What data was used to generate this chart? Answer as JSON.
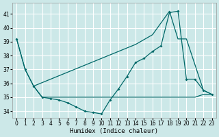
{
  "xlabel": "Humidex (Indice chaleur)",
  "background_color": "#cce8e8",
  "grid_color": "#ffffff",
  "line_color": "#006868",
  "xlim": [
    -0.5,
    23.5
  ],
  "ylim": [
    33.5,
    41.8
  ],
  "yticks": [
    34,
    35,
    36,
    37,
    38,
    39,
    40,
    41
  ],
  "xticks": [
    0,
    1,
    2,
    3,
    4,
    5,
    6,
    7,
    8,
    9,
    10,
    11,
    12,
    13,
    14,
    15,
    16,
    17,
    18,
    19,
    20,
    21,
    22,
    23
  ],
  "curve1_x": [
    0,
    1,
    2,
    3,
    4,
    5,
    6,
    7,
    8,
    9,
    10,
    11,
    12,
    13,
    14,
    15,
    16,
    17,
    18,
    19,
    20,
    21,
    22,
    23
  ],
  "curve1_y": [
    39.2,
    37.0,
    35.8,
    35.0,
    35.0,
    35.0,
    35.0,
    35.0,
    35.0,
    35.0,
    35.0,
    35.0,
    35.0,
    35.0,
    35.0,
    35.0,
    35.0,
    35.0,
    35.0,
    35.0,
    35.0,
    35.0,
    35.2,
    35.2
  ],
  "curve2_x": [
    2,
    4,
    6,
    8,
    10,
    12,
    14,
    16,
    18,
    19,
    20,
    22,
    23
  ],
  "curve2_y": [
    35.8,
    36.3,
    36.8,
    37.3,
    37.8,
    38.3,
    38.8,
    39.5,
    41.2,
    39.2,
    39.2,
    35.5,
    35.2
  ],
  "curve3_x": [
    0,
    1,
    2,
    3,
    4,
    5,
    6,
    7,
    8,
    9,
    10,
    11,
    12,
    13,
    14,
    15,
    16,
    17,
    18,
    19,
    20,
    21,
    22,
    23
  ],
  "curve3_y": [
    39.2,
    37.0,
    35.8,
    35.0,
    34.9,
    34.8,
    34.6,
    34.3,
    34.0,
    33.9,
    33.8,
    34.8,
    35.6,
    36.5,
    37.5,
    37.8,
    38.3,
    38.7,
    41.1,
    41.2,
    36.3,
    36.3,
    35.5,
    35.2
  ]
}
